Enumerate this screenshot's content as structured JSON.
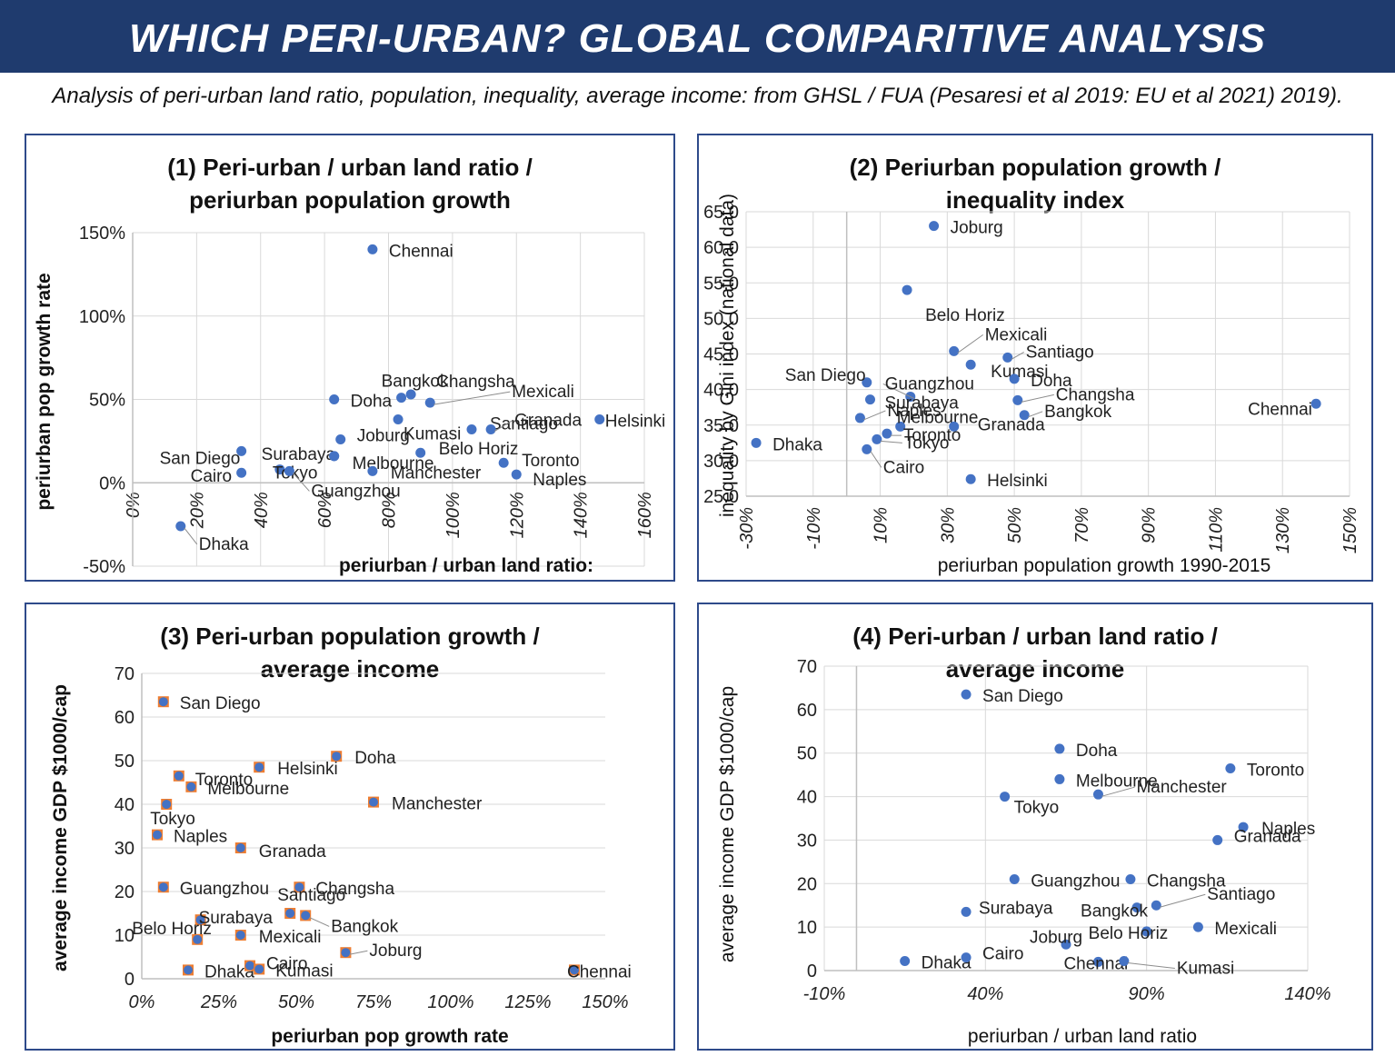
{
  "header": {
    "title": "WHICH PERI-URBAN? GLOBAL COMPARITIVE ANALYSIS",
    "subtitle": "Analysis of peri-urban land ratio, population, inequality, average income: from GHSL / FUA (Pesaresi et al 2019:  EU et al 2021) 2019)."
  },
  "colors": {
    "banner": "#1f3b6e",
    "marker": "#4472c4",
    "square": "#ed7d31",
    "panel_border": "#2e4a8a"
  },
  "chart_data": [
    {
      "id": "p1",
      "type": "scatter",
      "title": [
        "(1) Peri-urban / urban land ratio /",
        "periurban population growth"
      ],
      "xlabel": "periurban / urban land ratio:",
      "ylabel": "periurban pop growth rate",
      "xlim": [
        0,
        160
      ],
      "ylim": [
        -50,
        150
      ],
      "xticks": [
        "0%",
        "20%",
        "40%",
        "60%",
        "80%",
        "100%",
        "120%",
        "140%",
        "160%"
      ],
      "yticks": [
        "-50%",
        "0%",
        "50%",
        "100%",
        "150%"
      ],
      "points": [
        {
          "label": "Chennai",
          "x": 75,
          "y": 140
        },
        {
          "label": "Bangkok",
          "x": 84,
          "y": 51
        },
        {
          "label": "Changsha",
          "x": 87,
          "y": 53
        },
        {
          "label": "Doha",
          "x": 63,
          "y": 50
        },
        {
          "label": "Kumasi",
          "x": 83,
          "y": 38
        },
        {
          "label": "Mexicali",
          "x": 93,
          "y": 48
        },
        {
          "label": "Santiago",
          "x": 106,
          "y": 32
        },
        {
          "label": "Helsinki",
          "x": 146,
          "y": 38
        },
        {
          "label": "Joburg",
          "x": 65,
          "y": 26
        },
        {
          "label": "Belo Horiz",
          "x": 90,
          "y": 18
        },
        {
          "label": "Granada",
          "x": 112,
          "y": 32
        },
        {
          "label": "Surabaya",
          "x": 63,
          "y": 16
        },
        {
          "label": "Melbourne",
          "x": 63,
          "y": 16
        },
        {
          "label": "Manchester",
          "x": 75,
          "y": 7
        },
        {
          "label": "Toronto",
          "x": 116,
          "y": 12
        },
        {
          "label": "Naples",
          "x": 120,
          "y": 5
        },
        {
          "label": "San Diego",
          "x": 34,
          "y": 19
        },
        {
          "label": "Cairo",
          "x": 34,
          "y": 6
        },
        {
          "label": "Tokyo",
          "x": 46,
          "y": 8
        },
        {
          "label": "Guangzhou",
          "x": 49,
          "y": 7
        },
        {
          "label": "Dhaka",
          "x": 15,
          "y": -26
        }
      ]
    },
    {
      "id": "p2",
      "type": "scatter",
      "title": [
        "(2) Periurban population growth /",
        "inequality index"
      ],
      "xlabel": "periurban population growth 1990-2015",
      "ylabel": "inequality by Gini index (national data)",
      "xlim": [
        -30,
        150
      ],
      "ylim": [
        25,
        65
      ],
      "xticks": [
        "-30%",
        "-10%",
        "10%",
        "30%",
        "50%",
        "70%",
        "90%",
        "110%",
        "130%",
        "150%"
      ],
      "yticks": [
        "25.0",
        "30.0",
        "35.0",
        "40.0",
        "45.0",
        "50.0",
        "55.0",
        "60.0",
        "65.0"
      ],
      "points": [
        {
          "label": "Joburg",
          "x": 26,
          "y": 63
        },
        {
          "label": "Belo Horiz",
          "x": 18,
          "y": 54
        },
        {
          "label": "Mexicali",
          "x": 32,
          "y": 45.4
        },
        {
          "label": "Santiago",
          "x": 48,
          "y": 44.5
        },
        {
          "label": "Kumasi",
          "x": 37,
          "y": 43.5
        },
        {
          "label": "Doha",
          "x": 50,
          "y": 41.5
        },
        {
          "label": "San Diego",
          "x": 6,
          "y": 41
        },
        {
          "label": "Guangzhou",
          "x": 19,
          "y": 39
        },
        {
          "label": "Surabaya",
          "x": 7,
          "y": 38.6
        },
        {
          "label": "Changsha",
          "x": 51,
          "y": 38.5
        },
        {
          "label": "Naples",
          "x": 4,
          "y": 36
        },
        {
          "label": "Bangkok",
          "x": 53,
          "y": 36.4
        },
        {
          "label": "Chennai",
          "x": 140,
          "y": 38
        },
        {
          "label": "Melbourne",
          "x": 16,
          "y": 34.8
        },
        {
          "label": "Granada",
          "x": 32,
          "y": 34.8
        },
        {
          "label": "Toronto",
          "x": 12,
          "y": 33.8
        },
        {
          "label": "Tokyo",
          "x": 9,
          "y": 33
        },
        {
          "label": "Dhaka",
          "x": -27,
          "y": 32.5
        },
        {
          "label": "Cairo",
          "x": 6,
          "y": 31.6
        },
        {
          "label": "Helsinki",
          "x": 37,
          "y": 27.4
        }
      ]
    },
    {
      "id": "p3",
      "type": "scatter",
      "title": [
        "(3) Peri-urban population growth /",
        "average income"
      ],
      "xlabel": "periurban pop growth rate",
      "ylabel": "average income GDP $1000/cap",
      "xlim": [
        0,
        150
      ],
      "ylim": [
        0,
        70
      ],
      "xticks": [
        "0%",
        "25%",
        "50%",
        "75%",
        "100%",
        "125%",
        "150%"
      ],
      "yticks": [
        "0",
        "10",
        "20",
        "30",
        "40",
        "50",
        "60",
        "70"
      ],
      "points": [
        {
          "label": "San Diego",
          "x": 7,
          "y": 63.5
        },
        {
          "label": "Doha",
          "x": 63,
          "y": 51
        },
        {
          "label": "Helsinki",
          "x": 38,
          "y": 48.5
        },
        {
          "label": "Toronto",
          "x": 12,
          "y": 46.5
        },
        {
          "label": "Melbourne",
          "x": 16,
          "y": 44
        },
        {
          "label": "Manchester",
          "x": 75,
          "y": 40.5
        },
        {
          "label": "Tokyo",
          "x": 8,
          "y": 40
        },
        {
          "label": "Naples",
          "x": 5,
          "y": 33
        },
        {
          "label": "Granada",
          "x": 32,
          "y": 30
        },
        {
          "label": "Guangzhou",
          "x": 7,
          "y": 21
        },
        {
          "label": "Changsha",
          "x": 51,
          "y": 21
        },
        {
          "label": "Santiago",
          "x": 48,
          "y": 15
        },
        {
          "label": "Surabaya",
          "x": 19,
          "y": 13.5
        },
        {
          "label": "Bangkok",
          "x": 53,
          "y": 14.5
        },
        {
          "label": "Belo Horiz",
          "x": 18,
          "y": 9
        },
        {
          "label": "Mexicali",
          "x": 32,
          "y": 10
        },
        {
          "label": "Joburg",
          "x": 66,
          "y": 6
        },
        {
          "label": "Dhaka",
          "x": 15,
          "y": 2
        },
        {
          "label": "Cairo",
          "x": 35,
          "y": 3
        },
        {
          "label": "Kumasi",
          "x": 38,
          "y": 2.2
        },
        {
          "label": "Chennai",
          "x": 140,
          "y": 2
        }
      ]
    },
    {
      "id": "p4",
      "type": "scatter",
      "title": [
        "(4) Peri-urban / urban land ratio /",
        "average income"
      ],
      "xlabel": "periurban / urban land ratio",
      "ylabel": "average income GDP $1000/cap",
      "xlim": [
        -10,
        140
      ],
      "ylim": [
        0,
        70
      ],
      "xticks": [
        "-10%",
        "40%",
        "90%",
        "140%"
      ],
      "yticks": [
        "0",
        "10",
        "20",
        "30",
        "40",
        "50",
        "60",
        "70"
      ],
      "points": [
        {
          "label": "San Diego",
          "x": 34,
          "y": 63.5
        },
        {
          "label": "Doha",
          "x": 63,
          "y": 51
        },
        {
          "label": "Toronto",
          "x": 116,
          "y": 46.5
        },
        {
          "label": "Melbourne",
          "x": 63,
          "y": 44
        },
        {
          "label": "Manchester",
          "x": 75,
          "y": 40.5
        },
        {
          "label": "Tokyo",
          "x": 46,
          "y": 40
        },
        {
          "label": "Naples",
          "x": 120,
          "y": 33
        },
        {
          "label": "Granada",
          "x": 112,
          "y": 30
        },
        {
          "label": "Guangzhou",
          "x": 49,
          "y": 21
        },
        {
          "label": "Changsha",
          "x": 85,
          "y": 21
        },
        {
          "label": "Santiago",
          "x": 93,
          "y": 15
        },
        {
          "label": "Surabaya",
          "x": 34,
          "y": 13.5
        },
        {
          "label": "Bangkok",
          "x": 87,
          "y": 14.5
        },
        {
          "label": "Mexicali",
          "x": 106,
          "y": 10
        },
        {
          "label": "Belo Horiz",
          "x": 90,
          "y": 9
        },
        {
          "label": "Joburg",
          "x": 65,
          "y": 6
        },
        {
          "label": "Chennai",
          "x": 75,
          "y": 2
        },
        {
          "label": "Kumasi",
          "x": 83,
          "y": 2.2
        },
        {
          "label": "Dhaka",
          "x": 15,
          "y": 2.2
        },
        {
          "label": "Cairo",
          "x": 34,
          "y": 3
        }
      ]
    }
  ]
}
